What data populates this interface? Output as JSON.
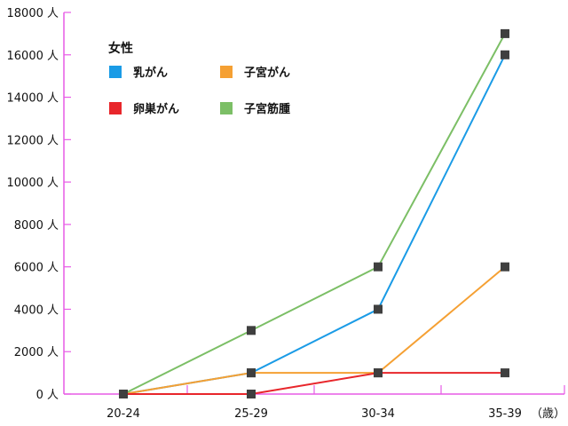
{
  "chart_data": {
    "type": "line",
    "categories": [
      "20-24",
      "25-29",
      "30-34",
      "35-39"
    ],
    "x_unit": "（歳）",
    "y_ticks": [
      {
        "value": 0,
        "label": "0 人"
      },
      {
        "value": 2000,
        "label": "2000 人"
      },
      {
        "value": 4000,
        "label": "4000 人"
      },
      {
        "value": 6000,
        "label": "6000 人"
      },
      {
        "value": 8000,
        "label": "8000 人"
      },
      {
        "value": 10000,
        "label": "10000 人"
      },
      {
        "value": 12000,
        "label": "12000 人"
      },
      {
        "value": 14000,
        "label": "14000 人"
      },
      {
        "value": 16000,
        "label": "16000 人"
      },
      {
        "value": 18000,
        "label": "18000 人"
      }
    ],
    "ylim": [
      0,
      18000
    ],
    "legend_title": "女性",
    "legend_position": "top-left",
    "series": [
      {
        "name": "乳がん",
        "color": "#1a9be6",
        "values": [
          0,
          1000,
          4000,
          16000
        ]
      },
      {
        "name": "子宮がん",
        "color": "#f5a033",
        "values": [
          0,
          1000,
          1000,
          6000
        ]
      },
      {
        "name": "卵巣がん",
        "color": "#e8262b",
        "values": [
          0,
          0,
          1000,
          1000
        ]
      },
      {
        "name": "子宮筋腫",
        "color": "#7cbf66",
        "values": [
          0,
          3000,
          6000,
          17000
        ]
      }
    ],
    "axis_color": "#e75ce6",
    "marker_color": "#3f3f3f"
  }
}
